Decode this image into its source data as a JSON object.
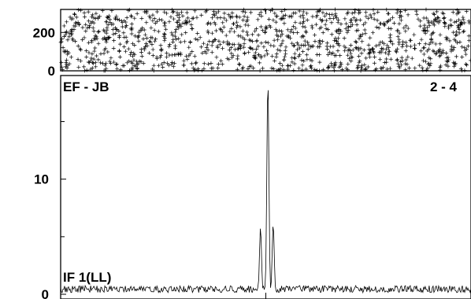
{
  "chart_data": [
    {
      "type": "scatter",
      "marker": "+",
      "yticks": [
        0,
        200
      ],
      "ylim": [
        0,
        320
      ],
      "xlim": [
        0,
        1
      ],
      "point_count": 1200,
      "grid": false
    },
    {
      "type": "line",
      "baseline_label": "EF - JB",
      "corner_label": "2 - 4",
      "series_label": "IF 1(LL)",
      "yticks": [
        0,
        10
      ],
      "ylim": [
        0,
        19
      ],
      "xlim": [
        0,
        1
      ],
      "noise_level": 0.6,
      "peaks": [
        {
          "x": 0.487,
          "y": 5.8
        },
        {
          "x": 0.505,
          "y": 18.6
        },
        {
          "x": 0.518,
          "y": 6.1
        }
      ],
      "grid": false
    }
  ]
}
